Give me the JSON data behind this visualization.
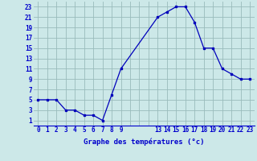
{
  "x": [
    0,
    1,
    2,
    3,
    4,
    5,
    6,
    7,
    8,
    9,
    13,
    14,
    15,
    16,
    17,
    18,
    19,
    20,
    21,
    22,
    23
  ],
  "y": [
    5,
    5,
    5,
    3,
    3,
    2,
    2,
    1,
    6,
    11,
    21,
    22,
    23,
    23,
    20,
    15,
    15,
    11,
    10,
    9,
    9
  ],
  "line_color": "#0000bb",
  "marker": "s",
  "markersize": 2.0,
  "background_color": "#cce8e8",
  "grid_color": "#99bbbb",
  "xlabel": "Graphe des températures (°c)",
  "xlabel_fontsize": 6.5,
  "xlabel_color": "#0000cc",
  "xlabel_fontweight": "bold",
  "tick_color": "#0000cc",
  "tick_fontsize": 5.5,
  "xlim": [
    -0.5,
    23.5
  ],
  "ylim": [
    0,
    24
  ],
  "yticks": [
    1,
    3,
    5,
    7,
    9,
    11,
    13,
    15,
    17,
    19,
    21,
    23
  ],
  "xtick_positions": [
    0,
    1,
    2,
    3,
    4,
    5,
    6,
    7,
    8,
    9,
    10,
    11,
    12,
    13,
    14,
    15,
    16,
    17,
    18,
    19,
    20,
    21,
    22,
    23
  ],
  "xtick_labels": [
    "0",
    "1",
    "2",
    "3",
    "4",
    "5",
    "6",
    "7",
    "8",
    "9",
    "",
    "",
    "",
    "13",
    "14",
    "15",
    "16",
    "17",
    "18",
    "19",
    "20",
    "21",
    "22",
    "23"
  ]
}
